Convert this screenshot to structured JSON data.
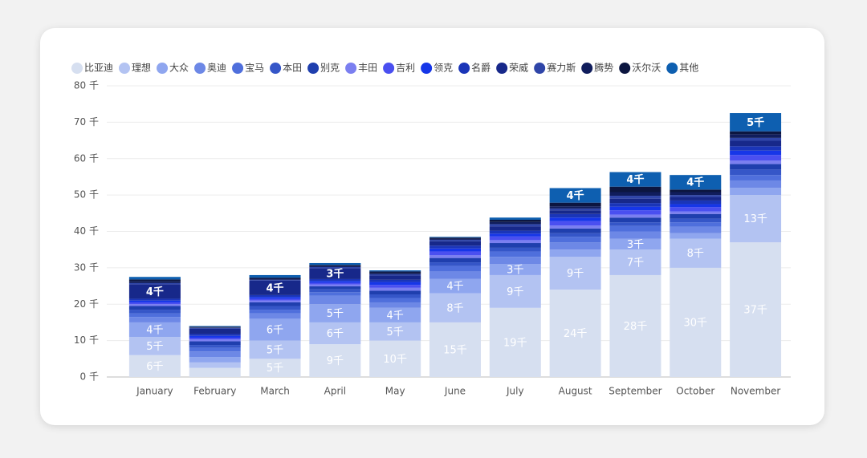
{
  "chart_data": {
    "type": "stacked_bar",
    "categories": [
      "January",
      "February",
      "March",
      "April",
      "May",
      "June",
      "July",
      "August",
      "September",
      "October",
      "November"
    ],
    "ylim": [
      0,
      80
    ],
    "yticks": [
      {
        "value": 0,
        "label": "0 千"
      },
      {
        "value": 10,
        "label": "10 千"
      },
      {
        "value": 20,
        "label": "20 千"
      },
      {
        "value": 30,
        "label": "30 千"
      },
      {
        "value": 40,
        "label": "40 千"
      },
      {
        "value": 50,
        "label": "50 千"
      },
      {
        "value": 60,
        "label": "60 千"
      },
      {
        "value": 70,
        "label": "70 千"
      },
      {
        "value": 80,
        "label": "80 千"
      }
    ],
    "grid": true,
    "legend": "top-left",
    "series": [
      {
        "name": "比亚迪",
        "color": "#d6dff0",
        "values": [
          6,
          2.5,
          5,
          9,
          10,
          15,
          19,
          24,
          28,
          30,
          37
        ],
        "value_labels": [
          "6千",
          null,
          "5千",
          "9千",
          "10千",
          "15千",
          "19千",
          "24千",
          "28千",
          "30千",
          "37千"
        ]
      },
      {
        "name": "理想",
        "color": "#b3c3f2",
        "values": [
          5,
          1.5,
          5,
          6,
          5,
          8,
          9,
          9,
          7,
          8,
          13
        ],
        "value_labels": [
          "5千",
          null,
          "5千",
          "6千",
          "5千",
          "8千",
          "9千",
          "9千",
          "7千",
          "8千",
          "13千"
        ]
      },
      {
        "name": "大众",
        "color": "#8fa6ef",
        "values": [
          4,
          1.5,
          6,
          5,
          4,
          4,
          3,
          2,
          3,
          1.5,
          2
        ],
        "value_labels": [
          "4千",
          null,
          "6千",
          "5千",
          "4千",
          "4千",
          "3千",
          null,
          "3千",
          null,
          null
        ]
      },
      {
        "name": "奥迪",
        "color": "#6d88e6",
        "values": [
          1.5,
          1.5,
          1.5,
          2.3,
          1.5,
          2,
          2,
          2,
          2,
          1.8,
          2
        ]
      },
      {
        "name": "宝马",
        "color": "#4f6fdc",
        "values": [
          1,
          1,
          1,
          1,
          1.2,
          1.5,
          1.5,
          1.5,
          1.5,
          1.2,
          1.5
        ]
      },
      {
        "name": "本田",
        "color": "#3556c8",
        "values": [
          1,
          0.8,
          1,
          0.8,
          1,
          1,
          1,
          1,
          1,
          1,
          1.5
        ]
      },
      {
        "name": "别克",
        "color": "#1f3fae",
        "values": [
          1,
          1,
          1,
          0.8,
          1,
          1.2,
          1.3,
          1.3,
          1.3,
          1.3,
          1.5
        ]
      },
      {
        "name": "丰田",
        "color": "#7b7ff0",
        "values": [
          0.5,
          0.5,
          0.5,
          0.5,
          0.8,
          0.8,
          0.8,
          0.8,
          0.8,
          0.7,
          1
        ]
      },
      {
        "name": "吉利",
        "color": "#4a4ff0",
        "values": [
          0.5,
          0.5,
          0.5,
          0.5,
          0.8,
          1,
          1,
          1.2,
          1.2,
          1.2,
          1.5
        ]
      },
      {
        "name": "领克",
        "color": "#1636e8",
        "values": [
          0.5,
          0.5,
          0.5,
          0.5,
          0.8,
          0.8,
          0.8,
          1,
          1,
          0.8,
          1.2
        ]
      },
      {
        "name": "名爵",
        "color": "#1a35b8",
        "values": [
          0.5,
          0.5,
          0.5,
          0.5,
          0.6,
          0.8,
          0.8,
          1,
          1,
          1,
          1.2
        ]
      },
      {
        "name": "荣威",
        "color": "#17288a",
        "values": [
          4,
          1.5,
          4,
          3,
          1.2,
          1.2,
          1.2,
          1,
          1.2,
          1,
          1.5
        ],
        "value_labels": [
          "4千",
          null,
          "4千",
          "3千",
          null,
          null,
          null,
          null,
          null,
          null,
          null
        ]
      },
      {
        "name": "赛力斯",
        "color": "#2f45a8",
        "values": [
          0.3,
          0.2,
          0.2,
          0.3,
          0.3,
          0.4,
          0.6,
          0.5,
          0.8,
          0.5,
          0.8
        ]
      },
      {
        "name": "腾势",
        "color": "#101d5c",
        "values": [
          0.5,
          0.1,
          0.3,
          0.3,
          0.4,
          0.3,
          0.6,
          0.6,
          1,
          0.8,
          1
        ]
      },
      {
        "name": "沃尔沃",
        "color": "#0c1640",
        "values": [
          0.5,
          0.2,
          0.3,
          0.3,
          0.4,
          0.3,
          0.6,
          1,
          1.5,
          0.7,
          0.8
        ]
      },
      {
        "name": "其他",
        "color": "#0e5fb0",
        "values": [
          0.7,
          0.2,
          0.7,
          0.5,
          0.3,
          0.2,
          0.6,
          4,
          4,
          4,
          5
        ],
        "value_labels": [
          null,
          null,
          null,
          null,
          null,
          null,
          null,
          "4千",
          "4千",
          "4千",
          "5千"
        ]
      }
    ]
  }
}
